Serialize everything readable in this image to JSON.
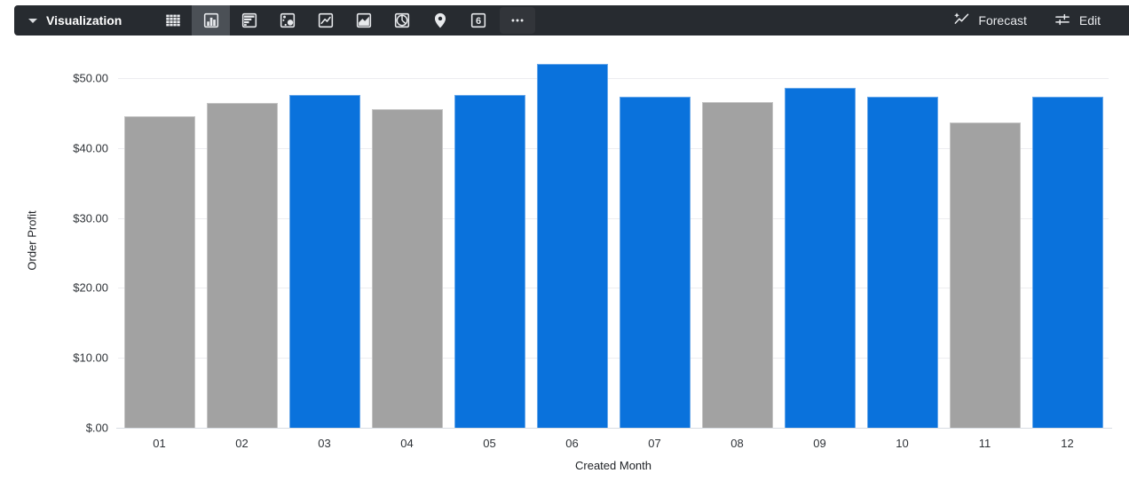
{
  "toolbar": {
    "dropdown_label": "Visualization",
    "viz_icons": [
      {
        "name": "table",
        "selected": false
      },
      {
        "name": "column-chart",
        "selected": true
      },
      {
        "name": "bar-chart-horizontal",
        "selected": false
      },
      {
        "name": "scatter-chart",
        "selected": false
      },
      {
        "name": "line-chart",
        "selected": false
      },
      {
        "name": "area-chart",
        "selected": false
      },
      {
        "name": "pie-chart",
        "selected": false
      },
      {
        "name": "map",
        "selected": false
      },
      {
        "name": "single-value",
        "selected": false,
        "glyph": "6"
      },
      {
        "name": "more-viz-types",
        "selected": false
      }
    ],
    "forecast_label": "Forecast",
    "edit_label": "Edit"
  },
  "chart_data": {
    "type": "bar",
    "title": "",
    "xlabel": "Created Month",
    "ylabel": "Order Profit",
    "categories": [
      "01",
      "02",
      "03",
      "04",
      "05",
      "06",
      "07",
      "08",
      "09",
      "10",
      "11",
      "12"
    ],
    "values": [
      44.5,
      46.4,
      47.6,
      45.6,
      47.6,
      52.0,
      47.3,
      46.6,
      48.6,
      47.3,
      43.7,
      47.3
    ],
    "bar_colors": [
      "gray",
      "gray",
      "blue",
      "gray",
      "blue",
      "blue",
      "blue",
      "gray",
      "blue",
      "blue",
      "gray",
      "blue"
    ],
    "yticks": [
      {
        "value": 0,
        "label": "$.00"
      },
      {
        "value": 10,
        "label": "$10.00"
      },
      {
        "value": 20,
        "label": "$20.00"
      },
      {
        "value": 30,
        "label": "$30.00"
      },
      {
        "value": 40,
        "label": "$40.00"
      },
      {
        "value": 50,
        "label": "$50.00"
      }
    ],
    "ylim": [
      0,
      53.55
    ],
    "grid": true,
    "legend": "none"
  },
  "palette": {
    "blue": "#0a72dc",
    "gray": "#a2a2a2",
    "toolbar_bg": "#272b30",
    "toolbar_selected_bg": "#4b5056",
    "icon_color": "#e8eaed",
    "gridline": "#ededf0",
    "axis_line": "#d9dde3"
  }
}
